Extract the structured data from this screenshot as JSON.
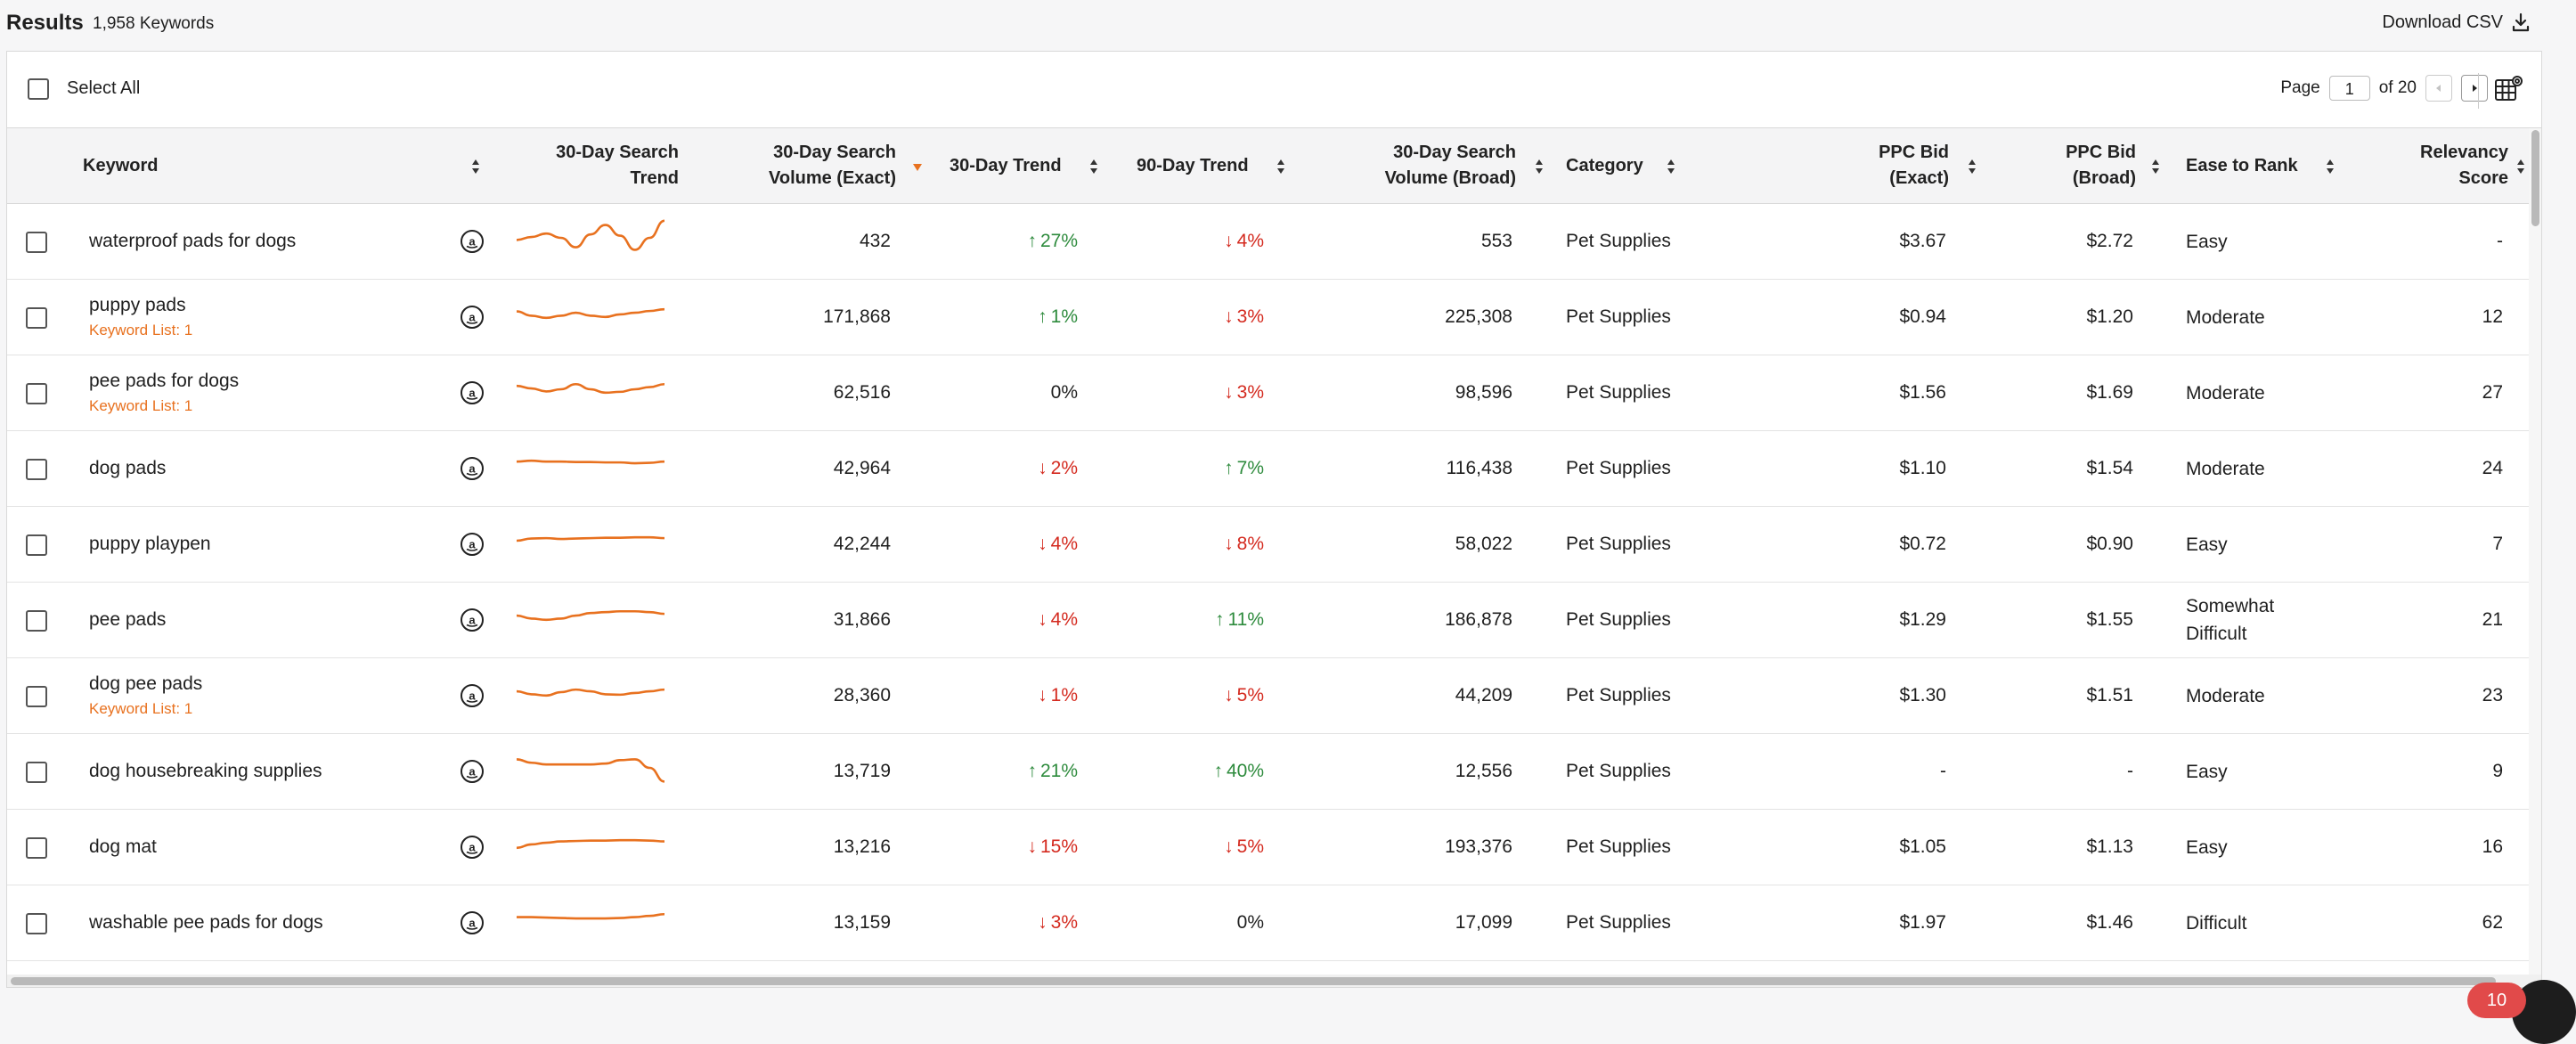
{
  "header": {
    "title": "Results",
    "count": "1,958 Keywords",
    "download_label": "Download CSV"
  },
  "toolbar": {
    "select_all": "Select All",
    "page_label": "Page",
    "page_value": "1",
    "of_label": "of 20"
  },
  "columns": {
    "keyword": "Keyword",
    "trend_chart": [
      "30-Day Search",
      "Trend"
    ],
    "volume_exact": [
      "30-Day Search",
      "Volume (Exact)"
    ],
    "trend30": "30-Day Trend",
    "trend90": "90-Day Trend",
    "volume_broad": [
      "30-Day Search",
      "Volume (Broad)"
    ],
    "category": "Category",
    "ppc_exact": [
      "PPC Bid",
      "(Exact)"
    ],
    "ppc_broad": [
      "PPC Bid",
      "(Broad)"
    ],
    "ease": "Ease to Rank",
    "relevancy": [
      "Relevancy",
      "Score"
    ]
  },
  "colors": {
    "accent": "#e8711f",
    "up": "#2e8b3d",
    "down": "#d42a1f",
    "badge": "#e14a4a"
  },
  "rows": [
    {
      "keyword": "waterproof pads for dogs",
      "list": "",
      "volume_exact": "432",
      "trend30": "27%",
      "trend30_dir": "up",
      "trend90": "4%",
      "trend90_dir": "down",
      "volume_broad": "553",
      "category": "Pet Supplies",
      "ppc_exact": "$3.67",
      "ppc_broad": "$2.72",
      "ease": "Easy",
      "relevancy": "-",
      "spark": [
        0.55,
        0.48,
        0.4,
        0.5,
        0.72,
        0.42,
        0.2,
        0.45,
        0.78,
        0.5,
        0.1
      ]
    },
    {
      "keyword": "puppy pads",
      "list": "Keyword List: 1",
      "volume_exact": "171,868",
      "trend30": "1%",
      "trend30_dir": "up",
      "trend90": "3%",
      "trend90_dir": "down",
      "volume_broad": "225,308",
      "category": "Pet Supplies",
      "ppc_exact": "$0.94",
      "ppc_broad": "$1.20",
      "ease": "Moderate",
      "relevancy": "12",
      "spark": [
        0.45,
        0.55,
        0.6,
        0.55,
        0.48,
        0.55,
        0.58,
        0.52,
        0.48,
        0.44,
        0.4
      ]
    },
    {
      "keyword": "pee pads for dogs",
      "list": "Keyword List: 1",
      "volume_exact": "62,516",
      "trend30": "0%",
      "trend30_dir": "",
      "trend90": "3%",
      "trend90_dir": "down",
      "volume_broad": "98,596",
      "category": "Pet Supplies",
      "ppc_exact": "$1.56",
      "ppc_broad": "$1.69",
      "ease": "Moderate",
      "relevancy": "27",
      "spark": [
        0.42,
        0.48,
        0.55,
        0.5,
        0.38,
        0.5,
        0.58,
        0.56,
        0.5,
        0.45,
        0.38
      ]
    },
    {
      "keyword": "dog pads",
      "list": "",
      "volume_exact": "42,964",
      "trend30": "2%",
      "trend30_dir": "down",
      "trend90": "7%",
      "trend90_dir": "up",
      "volume_broad": "116,438",
      "category": "Pet Supplies",
      "ppc_exact": "$1.10",
      "ppc_broad": "$1.54",
      "ease": "Moderate",
      "relevancy": "24",
      "spark": [
        0.42,
        0.4,
        0.42,
        0.42,
        0.43,
        0.43,
        0.44,
        0.44,
        0.46,
        0.45,
        0.42
      ]
    },
    {
      "keyword": "puppy playpen",
      "list": "",
      "volume_exact": "42,244",
      "trend30": "4%",
      "trend30_dir": "down",
      "trend90": "8%",
      "trend90_dir": "down",
      "volume_broad": "58,022",
      "category": "Pet Supplies",
      "ppc_exact": "$0.72",
      "ppc_broad": "$0.90",
      "ease": "Easy",
      "relevancy": "7",
      "spark": [
        0.5,
        0.45,
        0.44,
        0.46,
        0.45,
        0.44,
        0.43,
        0.43,
        0.42,
        0.42,
        0.44
      ]
    },
    {
      "keyword": "pee pads",
      "list": "",
      "volume_exact": "31,866",
      "trend30": "4%",
      "trend30_dir": "down",
      "trend90": "11%",
      "trend90_dir": "up",
      "volume_broad": "186,878",
      "category": "Pet Supplies",
      "ppc_exact": "$1.29",
      "ppc_broad": "$1.55",
      "ease": "Somewhat Difficult",
      "relevancy": "21",
      "spark": [
        0.48,
        0.55,
        0.58,
        0.55,
        0.48,
        0.42,
        0.4,
        0.38,
        0.38,
        0.4,
        0.44
      ]
    },
    {
      "keyword": "dog pee pads",
      "list": "Keyword List: 1",
      "volume_exact": "28,360",
      "trend30": "1%",
      "trend30_dir": "down",
      "trend90": "5%",
      "trend90_dir": "down",
      "volume_broad": "44,209",
      "category": "Pet Supplies",
      "ppc_exact": "$1.30",
      "ppc_broad": "$1.51",
      "ease": "Moderate",
      "relevancy": "23",
      "spark": [
        0.48,
        0.55,
        0.58,
        0.5,
        0.44,
        0.48,
        0.55,
        0.56,
        0.52,
        0.48,
        0.44
      ]
    },
    {
      "keyword": "dog housebreaking supplies",
      "list": "",
      "volume_exact": "13,719",
      "trend30": "21%",
      "trend30_dir": "up",
      "trend90": "40%",
      "trend90_dir": "up",
      "volume_broad": "12,556",
      "category": "Pet Supplies",
      "ppc_exact": "-",
      "ppc_broad": "-",
      "ease": "Easy",
      "relevancy": "9",
      "spark": [
        0.3,
        0.38,
        0.42,
        0.42,
        0.42,
        0.42,
        0.4,
        0.32,
        0.3,
        0.5,
        0.82
      ]
    },
    {
      "keyword": "dog mat",
      "list": "",
      "volume_exact": "13,216",
      "trend30": "15%",
      "trend30_dir": "down",
      "trend90": "5%",
      "trend90_dir": "down",
      "volume_broad": "193,376",
      "category": "Pet Supplies",
      "ppc_exact": "$1.05",
      "ppc_broad": "$1.13",
      "ease": "Easy",
      "relevancy": "16",
      "spark": [
        0.6,
        0.52,
        0.48,
        0.45,
        0.44,
        0.43,
        0.43,
        0.42,
        0.42,
        0.43,
        0.45
      ]
    },
    {
      "keyword": "washable pee pads for dogs",
      "list": "",
      "volume_exact": "13,159",
      "trend30": "3%",
      "trend30_dir": "down",
      "trend90": "0%",
      "trend90_dir": "",
      "volume_broad": "17,099",
      "category": "Pet Supplies",
      "ppc_exact": "$1.97",
      "ppc_broad": "$1.46",
      "ease": "Difficult",
      "relevancy": "62",
      "spark": [
        0.45,
        0.45,
        0.46,
        0.47,
        0.48,
        0.48,
        0.48,
        0.47,
        0.45,
        0.42,
        0.38
      ]
    }
  ],
  "notification_count": "10"
}
